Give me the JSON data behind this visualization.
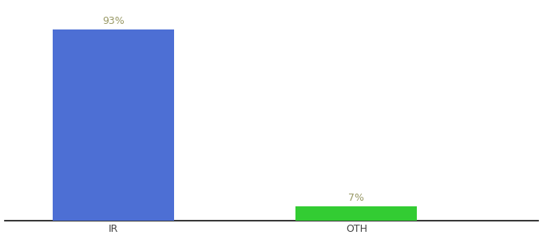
{
  "categories": [
    "IR",
    "OTH"
  ],
  "values": [
    93,
    7
  ],
  "bar_colors": [
    "#4d6fd4",
    "#33cc33"
  ],
  "bar_labels": [
    "93%",
    "7%"
  ],
  "background_color": "#ffffff",
  "ylim": [
    0,
    105
  ],
  "bar_width": 0.5,
  "label_fontsize": 9,
  "tick_fontsize": 9,
  "label_color": "#999966",
  "tick_color": "#444444",
  "spine_color": "#111111"
}
